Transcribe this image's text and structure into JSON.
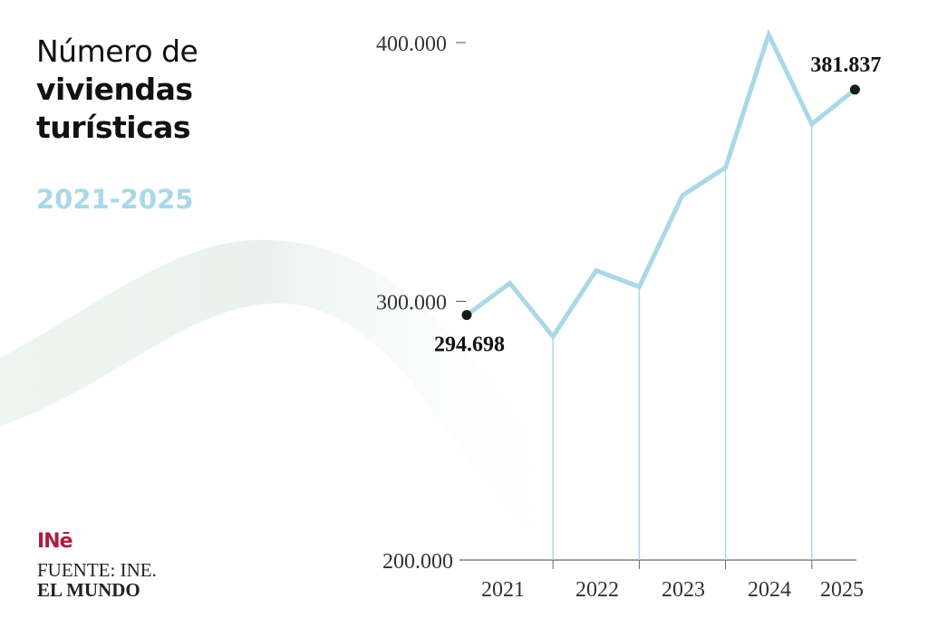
{
  "header": {
    "title_line1": "Número de",
    "title_line2": "viviendas",
    "title_line3": "turísticas",
    "period": "2021-2025"
  },
  "footer": {
    "logo": "INē",
    "source": "FUENTE: INE.",
    "publisher": "EL MUNDO"
  },
  "colors": {
    "line": "#aad8e7",
    "title_accent": "#a9d9e8",
    "logo": "#b01c3a",
    "text": "#111111"
  },
  "chart_data": {
    "type": "line",
    "title": "Número de viviendas turísticas 2021-2025",
    "xlabel": "",
    "ylabel": "",
    "ylim": [
      200000,
      400000
    ],
    "yticks": [
      200000,
      300000,
      400000
    ],
    "ytick_labels": [
      "200.000",
      "300.000",
      "400.000"
    ],
    "x_labels": [
      "2021",
      "2022",
      "2023",
      "2024",
      "2025"
    ],
    "year_dividers_after_index": [
      2,
      4,
      6,
      8
    ],
    "values": [
      294698,
      307000,
      286400,
      311900,
      305600,
      340900,
      351700,
      403100,
      368500,
      381837
    ],
    "annotations": [
      {
        "index": 0,
        "label": "294.698"
      },
      {
        "index": 9,
        "label": "381.837"
      }
    ],
    "grid": false
  }
}
